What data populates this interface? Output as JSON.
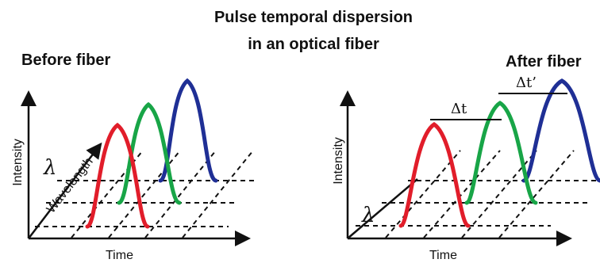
{
  "title": {
    "line1": "Pulse temporal dispersion",
    "line2": "in an optical fiber"
  },
  "left_panel": {
    "title": "Before fiber",
    "y_label": "Intensity",
    "x_label": "Time",
    "depth_label": "Wavelength",
    "lambda": "λ"
  },
  "right_panel": {
    "title": "After fiber",
    "y_label": "Intensity",
    "x_label": "Time",
    "lambda": "λ",
    "delta1": "Δt",
    "delta2": "Δt’"
  },
  "colors": {
    "red": "#e11d2a",
    "green": "#18a547",
    "blue": "#1f2f95",
    "black": "#111111"
  }
}
